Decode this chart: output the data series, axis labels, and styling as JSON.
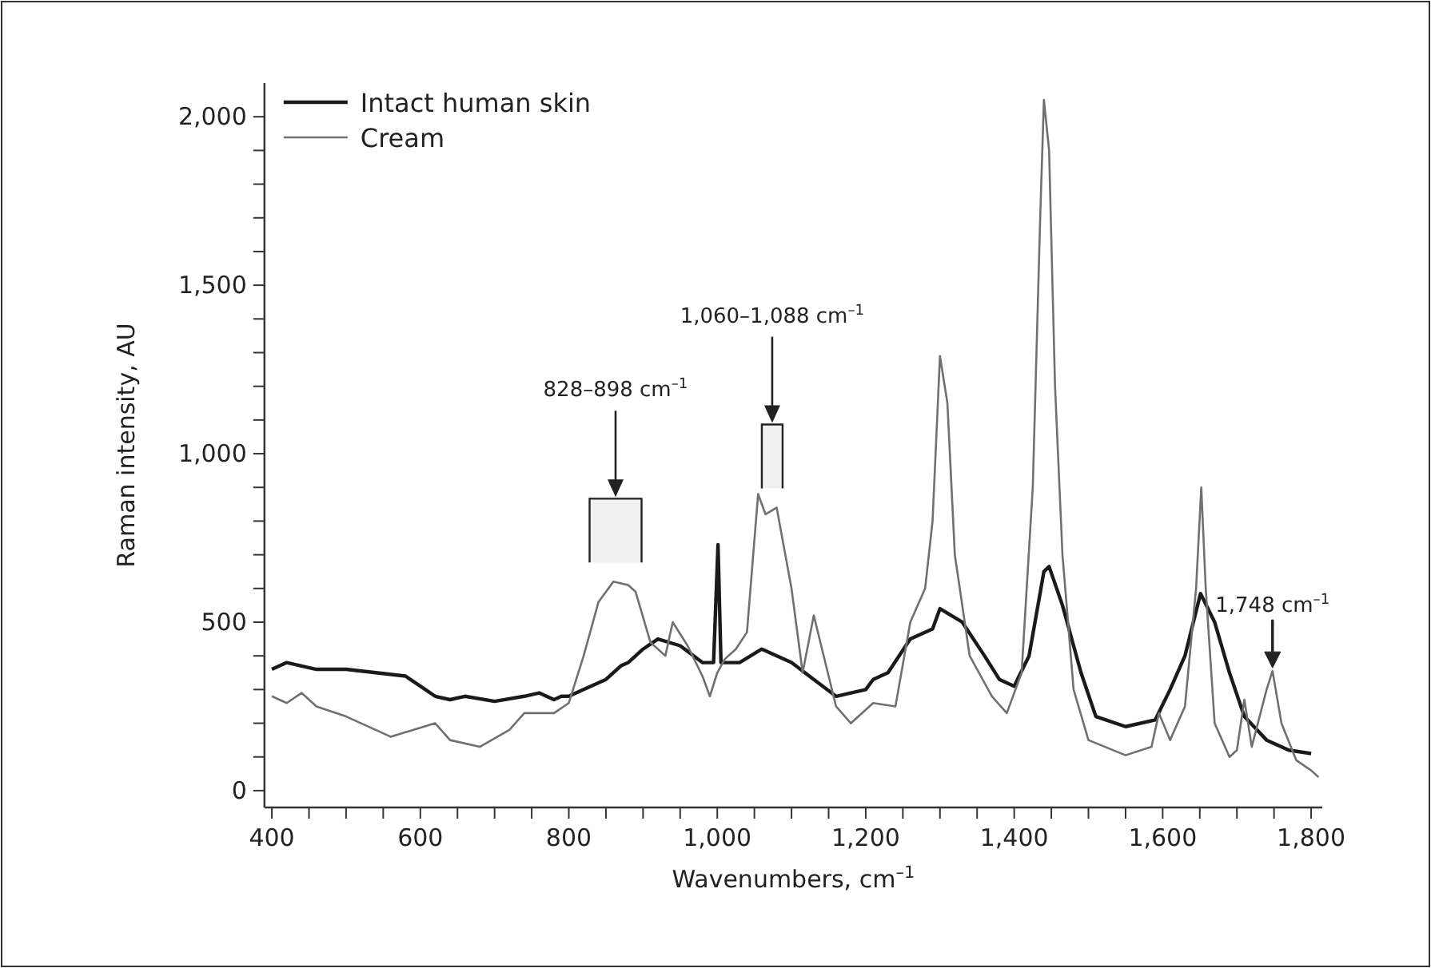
{
  "chart_data": {
    "type": "line",
    "xlabel": "Wavenumbers, cm$^{–1}$",
    "ylabel": "Raman intensity, AU",
    "xlim": [
      390,
      1815
    ],
    "xticks": [
      400,
      {
        "value": 450,
        "label": null
      },
      600,
      {
        "value": 500,
        "label": null
      },
      {
        "value": 550,
        "label": null
      },
      {
        "value": 650,
        "label": null
      },
      {
        "value": 700,
        "label": null
      },
      {
        "value": 750,
        "label": null
      },
      800,
      {
        "value": 850,
        "label": null
      },
      {
        "value": 900,
        "label": null
      },
      {
        "value": 950,
        "label": null
      },
      {
        "value": 1000,
        "label": "1,000"
      },
      {
        "value": 1050,
        "label": null
      },
      {
        "value": 1100,
        "label": null
      },
      {
        "value": 1150,
        "label": null
      },
      {
        "value": 1200,
        "label": "1,200"
      },
      {
        "value": 1250,
        "label": null
      },
      {
        "value": 1300,
        "label": null
      },
      {
        "value": 1350,
        "label": null
      },
      {
        "value": 1400,
        "label": "1,400"
      },
      {
        "value": 1450,
        "label": null
      },
      {
        "value": 1500,
        "label": null
      },
      {
        "value": 1550,
        "label": null
      },
      {
        "value": 1600,
        "label": "1,600"
      },
      {
        "value": 1650,
        "label": null
      },
      {
        "value": 1700,
        "label": null
      },
      {
        "value": 1750,
        "label": null
      },
      {
        "value": 1800,
        "label": "1,800"
      }
    ],
    "ylim": [
      -50,
      2100
    ],
    "yticks": [
      0,
      {
        "value": 100,
        "label": null
      },
      {
        "value": 200,
        "label": null
      },
      {
        "value": 300,
        "label": null
      },
      {
        "value": 400,
        "label": null
      },
      500,
      {
        "value": 600,
        "label": null
      },
      {
        "value": 700,
        "label": null
      },
      {
        "value": 800,
        "label": null
      },
      {
        "value": 900,
        "label": null
      },
      {
        "value": 1000,
        "label": "1,000"
      },
      {
        "value": 1100,
        "label": null
      },
      {
        "value": 1200,
        "label": null
      },
      {
        "value": 1300,
        "label": null
      },
      {
        "value": 1400,
        "label": null
      },
      {
        "value": 1500,
        "label": "1,500"
      },
      {
        "value": 1600,
        "label": null
      },
      {
        "value": 1700,
        "label": null
      },
      {
        "value": 1800,
        "label": null
      },
      {
        "value": 1900,
        "label": null
      },
      {
        "value": 2000,
        "label": "2,000"
      }
    ],
    "grid": false,
    "legend": "top left",
    "series": [
      {
        "name": "Intact human skin",
        "color": "#1a1a1a",
        "x": [
          400,
          420,
          460,
          500,
          540,
          580,
          600,
          620,
          640,
          660,
          700,
          740,
          760,
          780,
          790,
          800,
          820,
          850,
          870,
          880,
          900,
          920,
          950,
          980,
          995,
          1001,
          1005,
          1010,
          1030,
          1060,
          1100,
          1130,
          1160,
          1200,
          1210,
          1230,
          1260,
          1290,
          1300,
          1330,
          1360,
          1380,
          1400,
          1420,
          1440,
          1447,
          1465,
          1490,
          1510,
          1550,
          1590,
          1610,
          1630,
          1651,
          1670,
          1690,
          1710,
          1740,
          1770,
          1800
        ],
        "values": [
          360,
          380,
          360,
          360,
          350,
          340,
          310,
          280,
          270,
          280,
          265,
          280,
          290,
          270,
          280,
          280,
          300,
          330,
          370,
          380,
          420,
          450,
          430,
          380,
          380,
          730,
          380,
          380,
          380,
          420,
          380,
          330,
          280,
          300,
          330,
          350,
          450,
          480,
          540,
          500,
          400,
          330,
          310,
          400,
          650,
          665,
          550,
          350,
          220,
          190,
          210,
          300,
          400,
          585,
          500,
          350,
          220,
          150,
          120,
          110
        ]
      },
      {
        "name": "Cream",
        "color": "#707070",
        "x": [
          400,
          420,
          440,
          460,
          500,
          560,
          620,
          640,
          680,
          720,
          740,
          780,
          800,
          820,
          840,
          860,
          880,
          890,
          910,
          930,
          940,
          960,
          980,
          990,
          1000,
          1010,
          1025,
          1040,
          1055,
          1065,
          1080,
          1100,
          1115,
          1130,
          1140,
          1160,
          1180,
          1210,
          1240,
          1260,
          1280,
          1290,
          1300,
          1310,
          1320,
          1340,
          1370,
          1390,
          1410,
          1425,
          1435,
          1440,
          1447,
          1455,
          1465,
          1480,
          1500,
          1550,
          1585,
          1595,
          1610,
          1630,
          1645,
          1652,
          1658,
          1670,
          1690,
          1700,
          1710,
          1720,
          1740,
          1748,
          1760,
          1780,
          1800,
          1810
        ],
        "values": [
          280,
          260,
          290,
          250,
          220,
          160,
          200,
          150,
          130,
          180,
          230,
          230,
          260,
          400,
          560,
          620,
          610,
          590,
          440,
          400,
          500,
          430,
          340,
          280,
          350,
          390,
          420,
          470,
          880,
          820,
          840,
          600,
          350,
          520,
          430,
          250,
          200,
          260,
          250,
          500,
          600,
          800,
          1290,
          1150,
          700,
          400,
          280,
          230,
          350,
          900,
          1700,
          2050,
          1900,
          1200,
          700,
          300,
          150,
          105,
          130,
          230,
          150,
          250,
          600,
          900,
          600,
          200,
          100,
          120,
          270,
          130,
          300,
          355,
          200,
          90,
          60,
          40
        ]
      }
    ],
    "bands": [
      {
        "axis": "x",
        "from": 828,
        "to": 898,
        "label": "828–898 cm$^{–1}$"
      },
      {
        "axis": "x",
        "from": 1060,
        "to": 1088,
        "label": "1,060–1,088 cm$^{–1}$"
      }
    ],
    "annotations": [
      {
        "text": "1,748 cm$^{–1}$",
        "x": 1748,
        "y": 355
      }
    ]
  }
}
